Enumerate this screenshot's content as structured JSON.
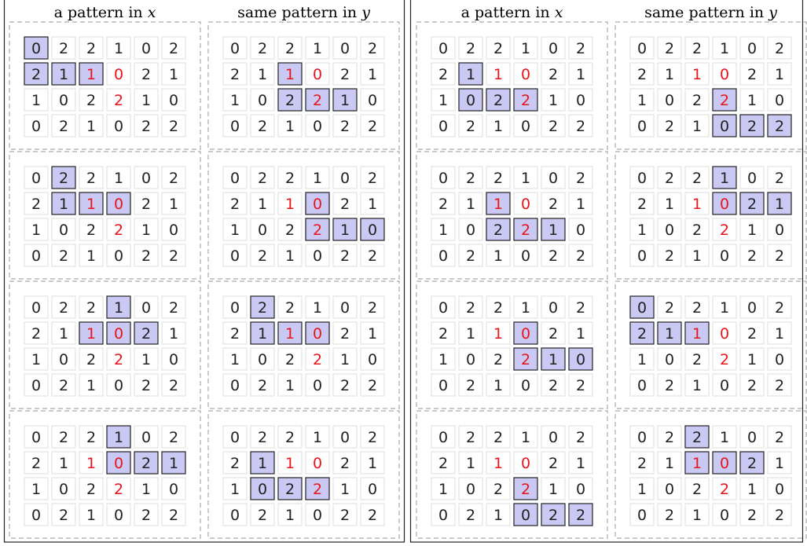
{
  "grid": [
    [
      0,
      2,
      2,
      1,
      0,
      2
    ],
    [
      2,
      1,
      1,
      0,
      2,
      1
    ],
    [
      1,
      0,
      2,
      2,
      1,
      0
    ],
    [
      0,
      2,
      1,
      0,
      2,
      2
    ]
  ],
  "panels": [
    {
      "columns": [
        {
          "header": {
            "text": "a pattern in",
            "var": "x"
          },
          "red": [
            [
              1,
              2
            ],
            [
              1,
              3
            ],
            [
              2,
              3
            ]
          ],
          "instances": [
            {
              "highlight": [
                [
                  0,
                  0
                ],
                [
                  1,
                  0
                ],
                [
                  1,
                  1
                ],
                [
                  1,
                  2
                ]
              ]
            },
            {
              "highlight": [
                [
                  0,
                  1
                ],
                [
                  1,
                  1
                ],
                [
                  1,
                  2
                ],
                [
                  1,
                  3
                ]
              ]
            },
            {
              "highlight": [
                [
                  0,
                  3
                ],
                [
                  1,
                  2
                ],
                [
                  1,
                  3
                ],
                [
                  1,
                  4
                ]
              ]
            },
            {
              "highlight": [
                [
                  0,
                  3
                ],
                [
                  1,
                  3
                ],
                [
                  1,
                  4
                ],
                [
                  1,
                  5
                ]
              ]
            }
          ]
        },
        {
          "header": {
            "text": "same pattern in",
            "var": "y"
          },
          "red": [
            [
              1,
              2
            ],
            [
              1,
              3
            ],
            [
              2,
              3
            ]
          ],
          "instances": [
            {
              "highlight": [
                [
                  1,
                  2
                ],
                [
                  2,
                  2
                ],
                [
                  2,
                  3
                ],
                [
                  2,
                  4
                ]
              ]
            },
            {
              "highlight": [
                [
                  1,
                  3
                ],
                [
                  2,
                  3
                ],
                [
                  2,
                  4
                ],
                [
                  2,
                  5
                ]
              ]
            },
            {
              "highlight": [
                [
                  0,
                  1
                ],
                [
                  1,
                  1
                ],
                [
                  1,
                  2
                ],
                [
                  1,
                  3
                ]
              ]
            },
            {
              "highlight": [
                [
                  1,
                  1
                ],
                [
                  2,
                  1
                ],
                [
                  2,
                  2
                ],
                [
                  2,
                  3
                ]
              ]
            }
          ]
        }
      ]
    },
    {
      "columns": [
        {
          "header": {
            "text": "a pattern in",
            "var": "x"
          },
          "red": [
            [
              1,
              2
            ],
            [
              1,
              3
            ],
            [
              2,
              3
            ]
          ],
          "instances": [
            {
              "highlight": [
                [
                  1,
                  1
                ],
                [
                  2,
                  1
                ],
                [
                  2,
                  2
                ],
                [
                  2,
                  3
                ]
              ]
            },
            {
              "highlight": [
                [
                  1,
                  2
                ],
                [
                  2,
                  2
                ],
                [
                  2,
                  3
                ],
                [
                  2,
                  4
                ]
              ]
            },
            {
              "highlight": [
                [
                  1,
                  3
                ],
                [
                  2,
                  3
                ],
                [
                  2,
                  4
                ],
                [
                  2,
                  5
                ]
              ]
            },
            {
              "highlight": [
                [
                  2,
                  3
                ],
                [
                  3,
                  3
                ],
                [
                  3,
                  4
                ],
                [
                  3,
                  5
                ]
              ]
            }
          ]
        },
        {
          "header": {
            "text": "same pattern in",
            "var": "y"
          },
          "red": [
            [
              1,
              2
            ],
            [
              1,
              3
            ],
            [
              2,
              3
            ]
          ],
          "instances": [
            {
              "highlight": [
                [
                  2,
                  3
                ],
                [
                  3,
                  3
                ],
                [
                  3,
                  4
                ],
                [
                  3,
                  5
                ]
              ]
            },
            {
              "highlight": [
                [
                  0,
                  3
                ],
                [
                  1,
                  3
                ],
                [
                  1,
                  4
                ],
                [
                  1,
                  5
                ]
              ]
            },
            {
              "highlight": [
                [
                  0,
                  0
                ],
                [
                  1,
                  0
                ],
                [
                  1,
                  1
                ],
                [
                  1,
                  2
                ]
              ]
            },
            {
              "highlight": [
                [
                  0,
                  2
                ],
                [
                  1,
                  2
                ],
                [
                  1,
                  3
                ],
                [
                  1,
                  4
                ]
              ]
            }
          ]
        }
      ]
    }
  ]
}
